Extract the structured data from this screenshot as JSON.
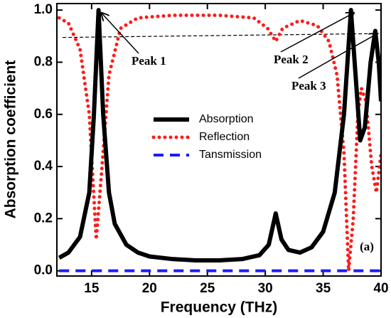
{
  "chart_data": {
    "type": "line",
    "x_label": "Frequency (THz)",
    "y_label": "Absorption coefficient",
    "xlim": [
      12,
      40
    ],
    "ylim": [
      -0.02,
      1.025
    ],
    "xticks": [
      15,
      20,
      25,
      30,
      35,
      40
    ],
    "yticks": [
      {
        "value": 0,
        "label": "0.0"
      },
      0.2,
      0.4,
      0.6,
      0.8,
      {
        "value": 1,
        "label": "1.0"
      }
    ],
    "series": [
      {
        "name": "Absorption",
        "color": "#000000",
        "style": "solid",
        "x": [
          12.2,
          13,
          14,
          14.8,
          15.2,
          15.6,
          16,
          16.5,
          17,
          18,
          19,
          20,
          22,
          24,
          26,
          28,
          29.5,
          30.3,
          30.9,
          31.4,
          32,
          33,
          34,
          35,
          36,
          36.8,
          37.4,
          37.8,
          38.2,
          38.6,
          39.1,
          39.5,
          39.8,
          40
        ],
        "values": [
          0.05,
          0.07,
          0.13,
          0.3,
          0.6,
          1.0,
          0.6,
          0.3,
          0.18,
          0.1,
          0.07,
          0.055,
          0.045,
          0.04,
          0.04,
          0.045,
          0.06,
          0.1,
          0.22,
          0.12,
          0.08,
          0.07,
          0.09,
          0.15,
          0.3,
          0.6,
          1.0,
          0.75,
          0.5,
          0.55,
          0.8,
          0.92,
          0.8,
          0.65
        ]
      },
      {
        "name": "Reflection",
        "color": "#ff1a1a",
        "style": "dotted",
        "x": [
          12.2,
          13,
          14,
          14.8,
          15.4,
          15.9,
          16.5,
          17.5,
          19,
          22,
          26,
          29,
          30.2,
          30.9,
          31.5,
          33,
          34.5,
          35.5,
          36.2,
          36.8,
          37.2,
          37.6,
          38,
          38.3,
          38.7,
          39.2,
          39.6,
          40
        ],
        "values": [
          0.97,
          0.95,
          0.85,
          0.6,
          0.12,
          0.4,
          0.75,
          0.93,
          0.97,
          0.98,
          0.98,
          0.97,
          0.93,
          0.88,
          0.93,
          0.96,
          0.94,
          0.88,
          0.75,
          0.45,
          0.0,
          0.2,
          0.6,
          0.7,
          0.65,
          0.4,
          0.3,
          0.45
        ]
      },
      {
        "name": "Tansmission",
        "color": "#1a1aff",
        "style": "dashed",
        "x": [
          12.2,
          40
        ],
        "values": [
          0,
          0
        ]
      }
    ],
    "reference_line": {
      "color": "#000000",
      "x": [
        12.5,
        40
      ],
      "values": [
        0.895,
        0.91
      ]
    },
    "annotations": [
      {
        "text": "Peak 1",
        "x": 15.6,
        "y": 1.0
      },
      {
        "text": "Peak 2",
        "x": 37.4,
        "y": 1.0
      },
      {
        "text": "Peak 3",
        "x": 39.4,
        "y": 0.92
      }
    ],
    "panel_label": "(a)"
  }
}
